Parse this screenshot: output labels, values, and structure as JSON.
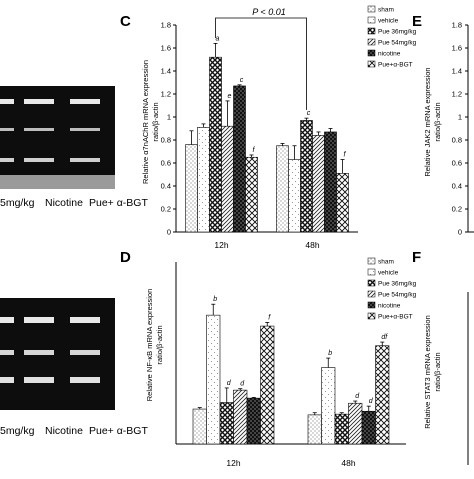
{
  "gels": {
    "top_labels": [
      "5mg/kg",
      "Nicotine",
      "Pue+ α-BGT"
    ],
    "bottom_labels": [
      "5mg/kg",
      "Nicotine",
      "Pue+ α-BGT"
    ]
  },
  "panels": {
    "C": "C",
    "D": "D",
    "E": "E",
    "F": "F"
  },
  "side_panels": {
    "E": {
      "ylabel": "Relative JAK2 mRNA expression ratio/β-actin",
      "ticks": [
        "0",
        "0.2",
        "0.4",
        "0.6",
        "0.8",
        "1",
        "1.2",
        "1.4",
        "1.6",
        "1.8"
      ]
    },
    "F": {
      "ylabel": "Relative STAT3 mRNA expression ratio/β-actin"
    }
  },
  "legend_labels": [
    "sham",
    "vehicle",
    "Pue 36mg/kg",
    "Pue 54mg/kg",
    "nicotine",
    "Pue+α-BGT"
  ],
  "colors": {
    "frame": "#000000",
    "gel_bg": "#0d0d0d",
    "band": "#e8e8e8"
  },
  "chart_data": [
    {
      "panel": "C",
      "type": "bar",
      "ylabel": "Relative α7nAChR mRNA expression ratio/β-actin",
      "categories": [
        "12h",
        "48h"
      ],
      "ylim": [
        0,
        1.8
      ],
      "yticks": [
        0,
        0.2,
        0.4,
        0.6,
        0.8,
        1,
        1.2,
        1.4,
        1.6,
        1.8
      ],
      "annotation": "P < 0.01",
      "series": [
        {
          "name": "sham",
          "values": [
            0.76,
            0.75
          ],
          "errors": [
            0.12,
            0.02
          ],
          "letters": [
            "",
            ""
          ]
        },
        {
          "name": "vehicle",
          "values": [
            0.91,
            0.63
          ],
          "errors": [
            0.03,
            0.12
          ],
          "letters": [
            "",
            ""
          ]
        },
        {
          "name": "Pue 36mg/kg",
          "values": [
            1.52,
            0.97
          ],
          "errors": [
            0.12,
            0.02
          ],
          "letters": [
            "a",
            "c"
          ]
        },
        {
          "name": "Pue 54mg/kg",
          "values": [
            0.92,
            0.84
          ],
          "errors": [
            0.22,
            0.03
          ],
          "letters": [
            "e",
            ""
          ]
        },
        {
          "name": "nicotine",
          "values": [
            1.27,
            0.87
          ],
          "errors": [
            0.01,
            0.03
          ],
          "letters": [
            "c",
            ""
          ]
        },
        {
          "name": "Pue+α-BGT",
          "values": [
            0.65,
            0.51
          ],
          "errors": [
            0.02,
            0.12
          ],
          "letters": [
            "f",
            "f"
          ]
        }
      ]
    },
    {
      "panel": "D",
      "type": "bar",
      "ylabel": "Relative NF-κB mRNA expression ratio/β-actin",
      "categories": [
        "12h",
        "48h"
      ],
      "ylim": [
        0,
        2.5
      ],
      "series": [
        {
          "name": "sham",
          "values": [
            0.48,
            0.4
          ],
          "errors": [
            0.02,
            0.03
          ],
          "letters": [
            "",
            ""
          ]
        },
        {
          "name": "vehicle",
          "values": [
            1.77,
            1.05
          ],
          "errors": [
            0.15,
            0.13
          ],
          "letters": [
            "b",
            "b"
          ]
        },
        {
          "name": "Pue 36mg/kg",
          "values": [
            0.57,
            0.41
          ],
          "errors": [
            0.2,
            0.02
          ],
          "letters": [
            "d",
            ""
          ]
        },
        {
          "name": "Pue 54mg/kg",
          "values": [
            0.74,
            0.56
          ],
          "errors": [
            0.02,
            0.03
          ],
          "letters": [
            "d",
            "d"
          ]
        },
        {
          "name": "nicotine",
          "values": [
            0.63,
            0.45
          ],
          "errors": [
            0.01,
            0.07
          ],
          "letters": [
            "",
            "d"
          ]
        },
        {
          "name": "Pue+α-BGT",
          "values": [
            1.62,
            1.35
          ],
          "errors": [
            0.05,
            0.05
          ],
          "letters": [
            "f",
            "df"
          ]
        }
      ]
    }
  ]
}
